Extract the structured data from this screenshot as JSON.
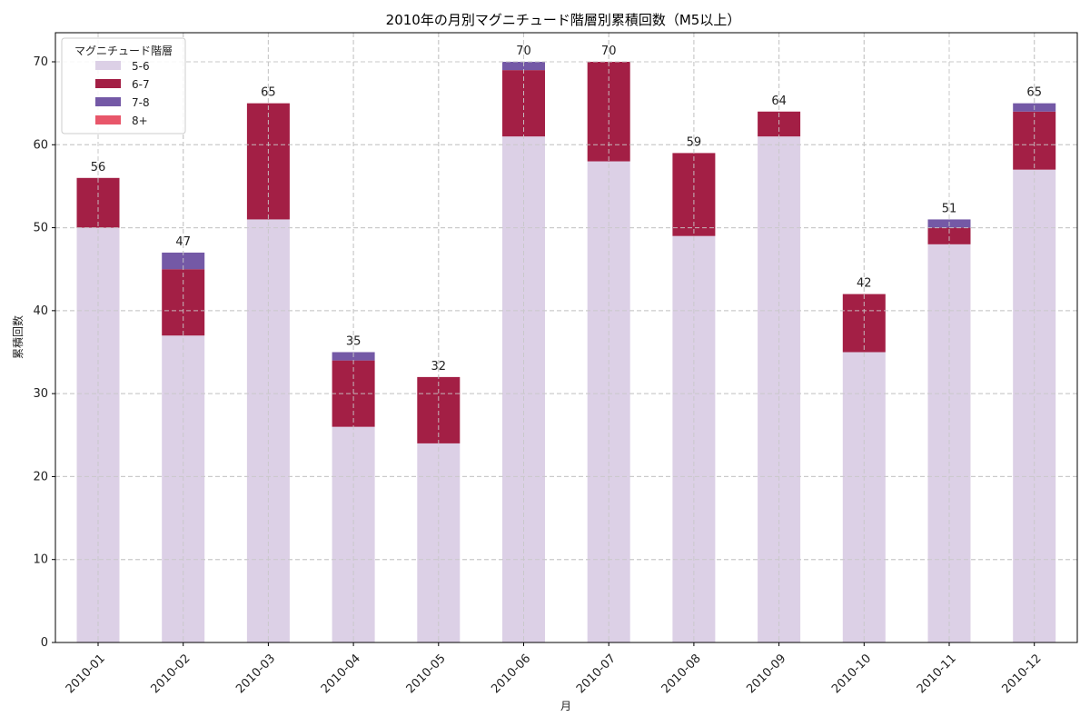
{
  "chart_data": {
    "type": "bar",
    "stacked": true,
    "title": "2010年の月別マグニチュード階層別累積回数（M5以上）",
    "xlabel": "月",
    "ylabel": "累積回数",
    "ylim": [
      0,
      73.5
    ],
    "yticks": [
      0,
      10,
      20,
      30,
      40,
      50,
      60,
      70
    ],
    "grid": true,
    "legend_title": "マグニチュード階層",
    "legend_position": "upper left",
    "categories": [
      "2010-01",
      "2010-02",
      "2010-03",
      "2010-04",
      "2010-05",
      "2010-06",
      "2010-07",
      "2010-08",
      "2010-09",
      "2010-10",
      "2010-11",
      "2010-12"
    ],
    "series": [
      {
        "name": "5-6",
        "color": "#dcd0e6",
        "values": [
          50,
          37,
          51,
          26,
          24,
          61,
          58,
          49,
          61,
          35,
          48,
          57
        ]
      },
      {
        "name": "6-7",
        "color": "#a31f45",
        "values": [
          6,
          8,
          14,
          8,
          8,
          8,
          12,
          10,
          3,
          7,
          2,
          7
        ]
      },
      {
        "name": "7-8",
        "color": "#7459a6",
        "values": [
          0,
          2,
          0,
          1,
          0,
          1,
          0,
          0,
          0,
          0,
          1,
          1
        ]
      },
      {
        "name": "8+",
        "color": "#e8566a",
        "values": [
          0,
          0,
          0,
          0,
          0,
          0,
          0,
          0,
          0,
          0,
          0,
          0
        ]
      }
    ],
    "totals": [
      56,
      47,
      65,
      35,
      32,
      70,
      70,
      59,
      64,
      42,
      51,
      65
    ]
  }
}
